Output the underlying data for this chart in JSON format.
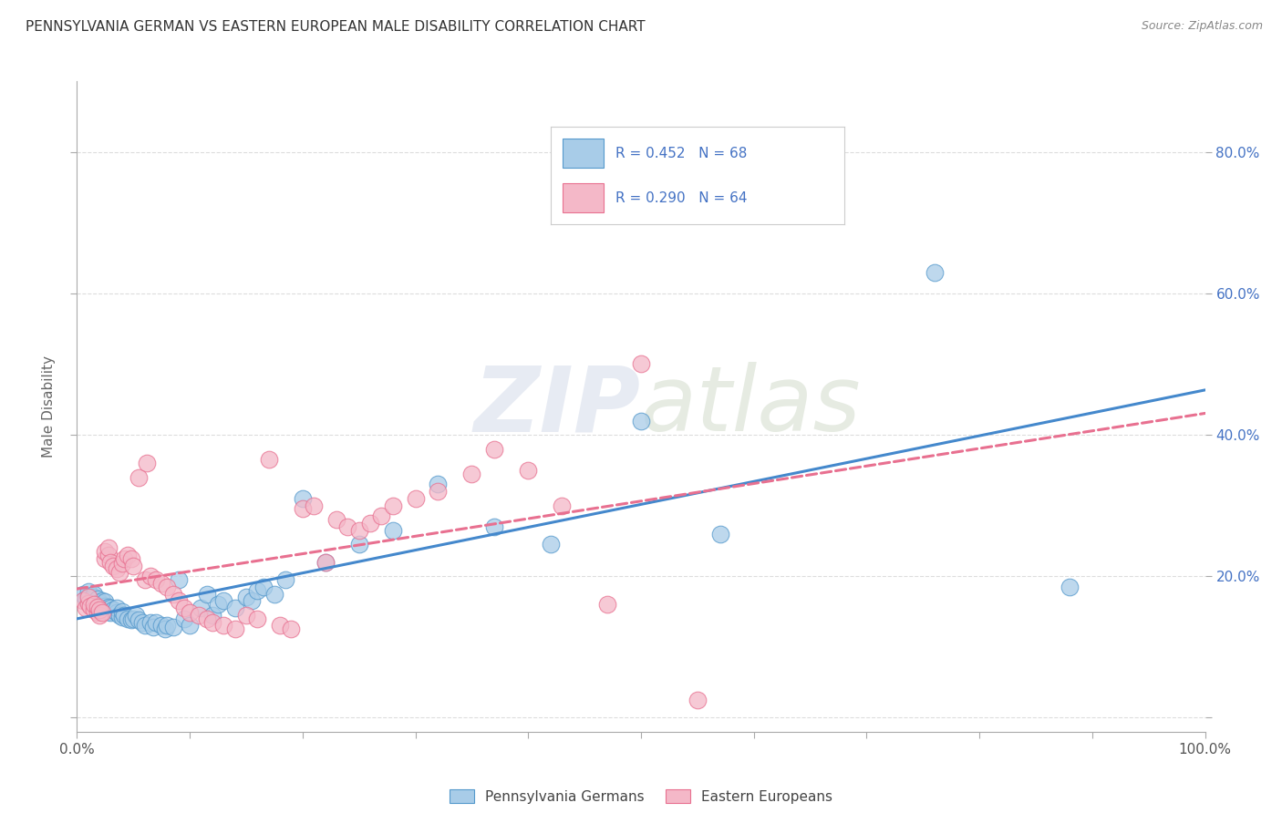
{
  "title": "PENNSYLVANIA GERMAN VS EASTERN EUROPEAN MALE DISABILITY CORRELATION CHART",
  "source": "Source: ZipAtlas.com",
  "ylabel": "Male Disability",
  "xlim": [
    0,
    1.0
  ],
  "ylim": [
    -0.02,
    0.9
  ],
  "x_ticks": [
    0.0,
    0.1,
    0.2,
    0.3,
    0.4,
    0.5,
    0.6,
    0.7,
    0.8,
    0.9,
    1.0
  ],
  "x_tick_labels": [
    "0.0%",
    "",
    "",
    "",
    "",
    "",
    "",
    "",
    "",
    "",
    "100.0%"
  ],
  "y_ticks": [
    0.0,
    0.2,
    0.4,
    0.6,
    0.8
  ],
  "y_tick_labels_right": [
    "",
    "20.0%",
    "40.0%",
    "60.0%",
    "80.0%"
  ],
  "blue_R": 0.452,
  "blue_N": 68,
  "pink_R": 0.29,
  "pink_N": 64,
  "blue_color": "#a8cce8",
  "pink_color": "#f4b8c8",
  "blue_edge_color": "#5599cc",
  "pink_edge_color": "#e87090",
  "blue_line_color": "#4488cc",
  "pink_line_color": "#dd6688",
  "legend_label_blue": "Pennsylvania Germans",
  "legend_label_pink": "Eastern Europeans",
  "blue_points_x": [
    0.005,
    0.008,
    0.01,
    0.01,
    0.012,
    0.015,
    0.015,
    0.015,
    0.018,
    0.018,
    0.02,
    0.02,
    0.022,
    0.022,
    0.025,
    0.025,
    0.025,
    0.028,
    0.028,
    0.03,
    0.03,
    0.032,
    0.035,
    0.035,
    0.038,
    0.04,
    0.04,
    0.042,
    0.045,
    0.048,
    0.05,
    0.052,
    0.055,
    0.058,
    0.06,
    0.065,
    0.068,
    0.07,
    0.075,
    0.078,
    0.08,
    0.085,
    0.09,
    0.095,
    0.1,
    0.11,
    0.115,
    0.12,
    0.125,
    0.13,
    0.14,
    0.15,
    0.155,
    0.16,
    0.165,
    0.175,
    0.185,
    0.2,
    0.22,
    0.25,
    0.28,
    0.32,
    0.37,
    0.42,
    0.5,
    0.57,
    0.76,
    0.88
  ],
  "blue_points_y": [
    0.175,
    0.168,
    0.172,
    0.178,
    0.165,
    0.162,
    0.17,
    0.175,
    0.16,
    0.168,
    0.155,
    0.163,
    0.158,
    0.165,
    0.152,
    0.158,
    0.164,
    0.15,
    0.156,
    0.148,
    0.155,
    0.152,
    0.148,
    0.155,
    0.145,
    0.142,
    0.15,
    0.145,
    0.14,
    0.138,
    0.14,
    0.145,
    0.138,
    0.135,
    0.13,
    0.135,
    0.128,
    0.135,
    0.13,
    0.125,
    0.13,
    0.128,
    0.195,
    0.14,
    0.13,
    0.155,
    0.175,
    0.145,
    0.16,
    0.165,
    0.155,
    0.17,
    0.165,
    0.18,
    0.185,
    0.175,
    0.195,
    0.31,
    0.22,
    0.245,
    0.265,
    0.33,
    0.27,
    0.245,
    0.42,
    0.26,
    0.63,
    0.185
  ],
  "pink_points_x": [
    0.005,
    0.008,
    0.01,
    0.01,
    0.012,
    0.015,
    0.015,
    0.018,
    0.018,
    0.02,
    0.02,
    0.022,
    0.025,
    0.025,
    0.028,
    0.028,
    0.03,
    0.032,
    0.035,
    0.038,
    0.04,
    0.042,
    0.045,
    0.048,
    0.05,
    0.055,
    0.06,
    0.062,
    0.065,
    0.07,
    0.075,
    0.08,
    0.085,
    0.09,
    0.095,
    0.1,
    0.108,
    0.115,
    0.12,
    0.13,
    0.14,
    0.15,
    0.16,
    0.17,
    0.18,
    0.19,
    0.2,
    0.21,
    0.22,
    0.23,
    0.24,
    0.25,
    0.26,
    0.27,
    0.28,
    0.3,
    0.32,
    0.35,
    0.37,
    0.4,
    0.43,
    0.47,
    0.5,
    0.55
  ],
  "pink_points_y": [
    0.165,
    0.155,
    0.162,
    0.17,
    0.158,
    0.152,
    0.16,
    0.148,
    0.156,
    0.145,
    0.152,
    0.148,
    0.225,
    0.235,
    0.23,
    0.24,
    0.22,
    0.215,
    0.21,
    0.205,
    0.218,
    0.225,
    0.23,
    0.225,
    0.215,
    0.34,
    0.195,
    0.36,
    0.2,
    0.195,
    0.19,
    0.185,
    0.175,
    0.165,
    0.155,
    0.148,
    0.145,
    0.14,
    0.135,
    0.13,
    0.125,
    0.145,
    0.14,
    0.365,
    0.13,
    0.125,
    0.295,
    0.3,
    0.22,
    0.28,
    0.27,
    0.265,
    0.275,
    0.285,
    0.3,
    0.31,
    0.32,
    0.345,
    0.38,
    0.35,
    0.3,
    0.16,
    0.5,
    0.025
  ]
}
